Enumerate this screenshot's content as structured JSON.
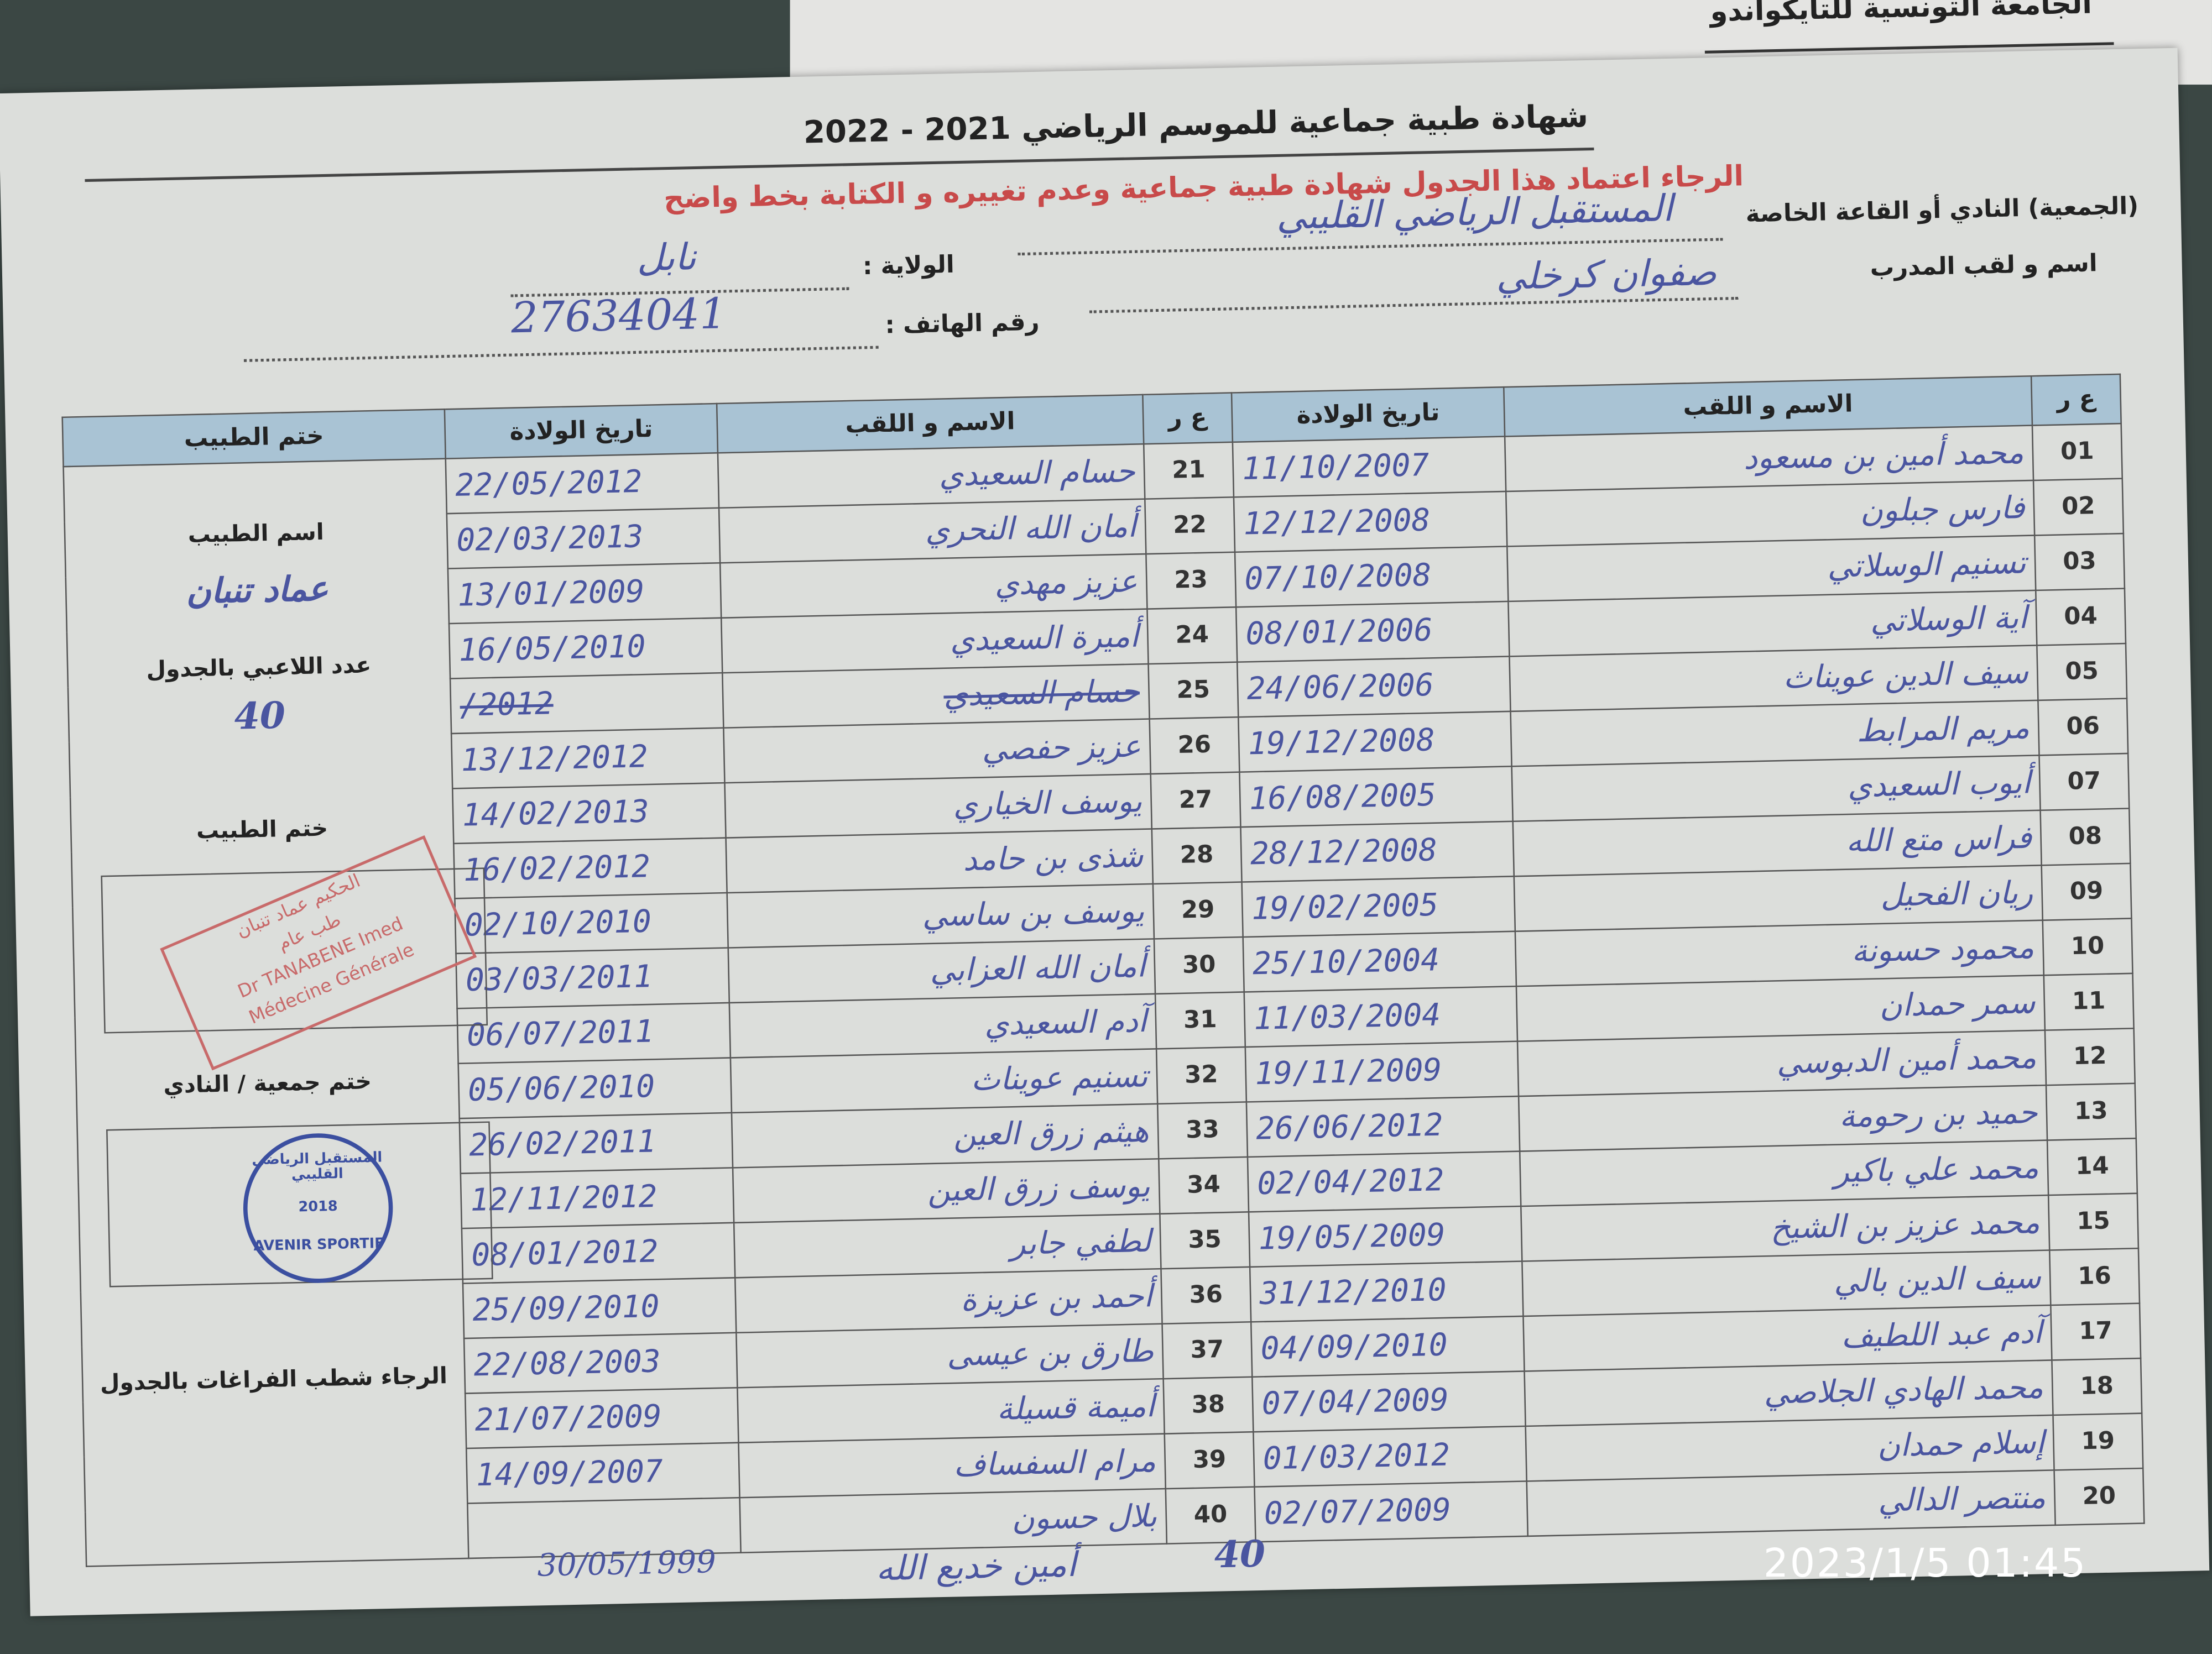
{
  "header": {
    "federation": "الجامعة التونسية للتايكواندو",
    "title": "شهادة طبية جماعية  للموسم الرياضي  2021 - 2022",
    "notice_line1": "الرجاء اعتماد هذا الجدول  شهادة طبية جماعية وعدم تغييره و الكتابة بخط واضح"
  },
  "form": {
    "club_label": "(الجمعية) النادي أو القاعة الخاصة",
    "club_value": "المستقبل الرياضي القليبي",
    "state_label": "الولاية :",
    "state_value": "نابل",
    "coach_label": "اسم و لقب المدرب",
    "coach_value": "صفوان كرخلي",
    "phone_label": "رقم الهاتف :",
    "phone_value": "27634041"
  },
  "table": {
    "headers": {
      "num": "ع ر",
      "name": "الاسم و اللقب",
      "dob": "تاريخ الولادة",
      "doctor": "ختم الطبيب"
    },
    "rows_right": [
      {
        "num": "01",
        "name": "محمد أمين بن مسعود",
        "dob": "11/10/2007"
      },
      {
        "num": "02",
        "name": "فارس جبلون",
        "dob": "12/12/2008"
      },
      {
        "num": "03",
        "name": "تسنيم الوسلاتي",
        "dob": "07/10/2008"
      },
      {
        "num": "04",
        "name": "آية الوسلاتي",
        "dob": "08/01/2006"
      },
      {
        "num": "05",
        "name": "سيف الدين عويناث",
        "dob": "24/06/2006"
      },
      {
        "num": "06",
        "name": "مريم المرابط",
        "dob": "19/12/2008"
      },
      {
        "num": "07",
        "name": "أيوب السعيدي",
        "dob": "16/08/2005"
      },
      {
        "num": "08",
        "name": "فراس متع الله",
        "dob": "28/12/2008"
      },
      {
        "num": "09",
        "name": "ريان الفحيل",
        "dob": "19/02/2005"
      },
      {
        "num": "10",
        "name": "محمود حسونة",
        "dob": "25/10/2004"
      },
      {
        "num": "11",
        "name": "سمر حمدان",
        "dob": "11/03/2004"
      },
      {
        "num": "12",
        "name": "محمد أمين الدبوسي",
        "dob": "19/11/2009"
      },
      {
        "num": "13",
        "name": "حميد بن رحومة",
        "dob": "26/06/2012"
      },
      {
        "num": "14",
        "name": "محمد علي باكير",
        "dob": "02/04/2012"
      },
      {
        "num": "15",
        "name": "محمد عزيز بن الشيخ",
        "dob": "19/05/2009"
      },
      {
        "num": "16",
        "name": "سيف الدين بالي",
        "dob": "31/12/2010"
      },
      {
        "num": "17",
        "name": "آدم عبد اللطيف",
        "dob": "04/09/2010"
      },
      {
        "num": "18",
        "name": "محمد الهادي الجلاصي",
        "dob": "07/04/2009"
      },
      {
        "num": "19",
        "name": "إسلام حمدان",
        "dob": "01/03/2012"
      },
      {
        "num": "20",
        "name": "منتصر الدالي",
        "dob": "02/07/2009"
      }
    ],
    "rows_left": [
      {
        "num": "21",
        "name": "حسام السعيدي",
        "dob": "22/05/2012"
      },
      {
        "num": "22",
        "name": "أمان الله النحري",
        "dob": "02/03/2013"
      },
      {
        "num": "23",
        "name": "عزيز مهدي",
        "dob": "13/01/2009"
      },
      {
        "num": "24",
        "name": "أميرة السعيدي",
        "dob": "16/05/2010"
      },
      {
        "num": "25",
        "name": "حسام السعيدي",
        "dob": "/2012",
        "struck": true
      },
      {
        "num": "26",
        "name": "عزيز حفصي",
        "dob": "13/12/2012"
      },
      {
        "num": "27",
        "name": "يوسف الخياري",
        "dob": "14/02/2013"
      },
      {
        "num": "28",
        "name": "شذى بن حامد",
        "dob": "16/02/2012"
      },
      {
        "num": "29",
        "name": "يوسف بن ساسي",
        "dob": "02/10/2010"
      },
      {
        "num": "30",
        "name": "أمان الله العزابي",
        "dob": "03/03/2011"
      },
      {
        "num": "31",
        "name": "آدم السعيدي",
        "dob": "06/07/2011"
      },
      {
        "num": "32",
        "name": "تسنيم عويناث",
        "dob": "05/06/2010"
      },
      {
        "num": "33",
        "name": "هيثم زرق العين",
        "dob": "26/02/2011"
      },
      {
        "num": "34",
        "name": "يوسف زرق العين",
        "dob": "12/11/2012"
      },
      {
        "num": "35",
        "name": "لطفي جابر",
        "dob": "08/01/2012"
      },
      {
        "num": "36",
        "name": "أحمد بن عزيزة",
        "dob": "25/09/2010"
      },
      {
        "num": "37",
        "name": "طارق بن عيسى",
        "dob": "22/08/2003"
      },
      {
        "num": "38",
        "name": "أميمة قسيلة",
        "dob": "21/07/2009"
      },
      {
        "num": "39",
        "name": "مرام السفساف",
        "dob": "14/09/2007"
      },
      {
        "num": "40",
        "name": "بلال حسون",
        "dob": ""
      }
    ],
    "extra_row": {
      "num": "40",
      "name": "أمين خديع الله",
      "dob": "30/05/1999"
    }
  },
  "doctor_panel": {
    "doctor_name_label": "اسم الطبيب",
    "doctor_name_value": "عماد تنبان",
    "players_count_label": "عدد اللاعبي بالجدول",
    "players_count_value": "40",
    "doctor_stamp_label": "ختم الطبيب",
    "doctor_stamp_text": [
      "الحكيم عماد تنبان",
      "طب عام",
      "Dr TANABENE Imed",
      "Médecine Générale"
    ],
    "club_stamp_label": "ختم جمعية / النادي",
    "club_stamp_text": [
      "المستقبل الرياضي القليبي",
      "AVENIR SPORTIF",
      "2018"
    ],
    "note": "الرجاء شطب  الفراغات بالجدول"
  },
  "photo_timestamp": "2023/1/5 01:45",
  "colors": {
    "header_fill": "#a9c3d4",
    "notice_red": "#c84a4a",
    "ink_blue": "#4a55a0",
    "stamp_red": "#c86a6a",
    "stamp_blue": "#3b4fa0"
  }
}
